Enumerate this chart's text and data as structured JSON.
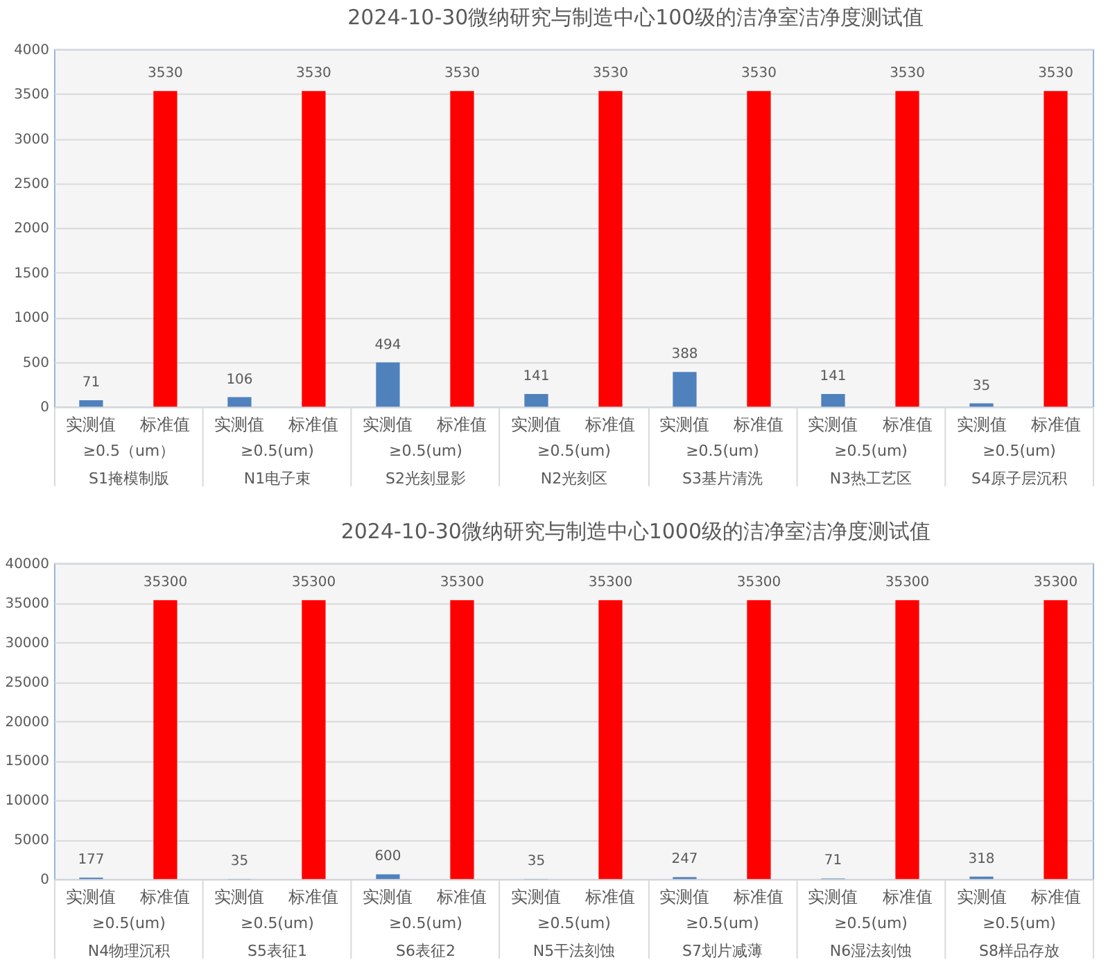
{
  "chart_data": [
    {
      "type": "bar",
      "title": "2024-10-30微纳研究与制造中心100级的洁净室洁净度测试值",
      "categories": [
        "≥0.5（um）\nS1掩模制版",
        "≥0.5(um)\nN1电子束",
        "≥0.5(um)\nS2光刻显影",
        "≥0.5(um)\nN2光刻区",
        "≥0.5(um)\nS3基片清洗",
        "≥0.5(um)\nN3热工艺区",
        "≥0.5(um)\nS4原子层沉积"
      ],
      "series": [
        {
          "name": "实测值",
          "color": "#4f81bd",
          "values": [
            71,
            106,
            494,
            141,
            388,
            141,
            35
          ]
        },
        {
          "name": "标准值",
          "color": "#ff0000",
          "values": [
            3530,
            3530,
            3530,
            3530,
            3530,
            3530,
            3530
          ]
        }
      ],
      "ylim": [
        0,
        4000
      ],
      "yticks": [
        0,
        500,
        1000,
        1500,
        2000,
        2500,
        3000,
        3500,
        4000
      ],
      "grid": "y",
      "data_labels": true
    },
    {
      "type": "bar",
      "title": "2024-10-30微纳研究与制造中心1000级的洁净室洁净度测试值",
      "categories": [
        "≥0.5(um)\nN4物理沉积",
        "≥0.5(um)\nS5表征1",
        "≥0.5(um)\nS6表征2",
        "≥0.5(um)\nN5干法刻蚀",
        "≥0.5(um)\nS7划片减薄",
        "≥0.5(um)\nN6湿法刻蚀",
        "≥0.5(um)\nS8样品存放"
      ],
      "series": [
        {
          "name": "实测值",
          "color": "#4f81bd",
          "values": [
            177,
            35,
            600,
            35,
            247,
            71,
            318
          ]
        },
        {
          "name": "标准值",
          "color": "#ff0000",
          "values": [
            35300,
            35300,
            35300,
            35300,
            35300,
            35300,
            35300
          ]
        }
      ],
      "ylim": [
        0,
        40000
      ],
      "yticks": [
        0,
        5000,
        10000,
        15000,
        20000,
        25000,
        30000,
        35000,
        40000
      ],
      "grid": "y",
      "data_labels": true
    }
  ]
}
